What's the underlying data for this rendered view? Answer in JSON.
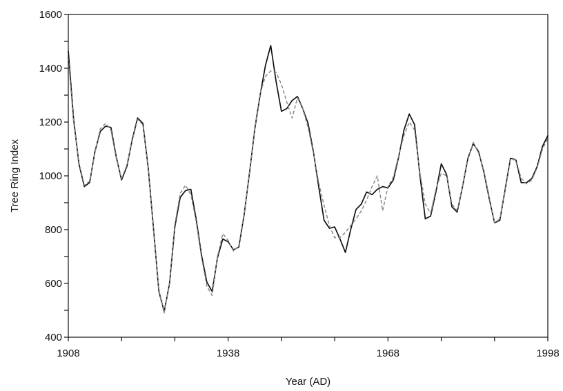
{
  "chart_data": {
    "type": "line",
    "title": "",
    "xlabel": "Year (AD)",
    "ylabel": "Tree Ring Index",
    "xlim": [
      1908,
      1998
    ],
    "ylim": [
      400,
      1600
    ],
    "x_ticks": [
      1908,
      1918,
      1928,
      1938,
      1948,
      1958,
      1968,
      1978,
      1988,
      1998
    ],
    "x_tick_labels": [
      "1908",
      "",
      "",
      "1938",
      "",
      "",
      "1968",
      "",
      "",
      "1998"
    ],
    "y_ticks": [
      400,
      500,
      600,
      700,
      800,
      900,
      1000,
      1100,
      1200,
      1300,
      1400,
      1500,
      1600
    ],
    "y_tick_labels": [
      "400",
      "",
      "600",
      "",
      "800",
      "",
      "1000",
      "",
      "1200",
      "",
      "1400",
      "",
      "1600"
    ],
    "grid": false,
    "legend": "none",
    "x": [
      1908,
      1909,
      1910,
      1911,
      1912,
      1913,
      1914,
      1915,
      1916,
      1917,
      1918,
      1919,
      1920,
      1921,
      1922,
      1923,
      1924,
      1925,
      1926,
      1927,
      1928,
      1929,
      1930,
      1931,
      1932,
      1933,
      1934,
      1935,
      1936,
      1937,
      1938,
      1939,
      1940,
      1941,
      1942,
      1943,
      1944,
      1945,
      1946,
      1947,
      1948,
      1949,
      1950,
      1951,
      1952,
      1953,
      1954,
      1955,
      1956,
      1957,
      1958,
      1959,
      1960,
      1961,
      1962,
      1963,
      1964,
      1965,
      1966,
      1967,
      1968,
      1969,
      1970,
      1971,
      1972,
      1973,
      1974,
      1975,
      1976,
      1977,
      1978,
      1979,
      1980,
      1981,
      1982,
      1983,
      1984,
      1985,
      1986,
      1987,
      1988,
      1989,
      1990,
      1991,
      1992,
      1993,
      1994,
      1995,
      1996,
      1997,
      1998
    ],
    "series": [
      {
        "style": "solid",
        "color": "#111111",
        "values": [
          1465,
          1210,
          1045,
          960,
          975,
          1090,
          1165,
          1185,
          1180,
          1070,
          985,
          1035,
          1135,
          1215,
          1195,
          1030,
          800,
          570,
          495,
          600,
          810,
          920,
          945,
          950,
          840,
          705,
          605,
          570,
          695,
          765,
          755,
          725,
          735,
          855,
          1010,
          1175,
          1300,
          1410,
          1485,
          1350,
          1240,
          1250,
          1280,
          1295,
          1250,
          1195,
          1090,
          960,
          835,
          805,
          810,
          765,
          715,
          800,
          875,
          895,
          940,
          930,
          950,
          960,
          955,
          985,
          1070,
          1170,
          1230,
          1190,
          1000,
          840,
          850,
          940,
          1045,
          1005,
          885,
          865,
          960,
          1065,
          1120,
          1090,
          1015,
          915,
          825,
          835,
          950,
          1065,
          1060,
          975,
          975,
          990,
          1035,
          1110,
          1150
        ]
      },
      {
        "style": "dashed",
        "color": "#888888",
        "values": [
          1440,
          1200,
          1050,
          965,
          980,
          1085,
          1175,
          1195,
          1170,
          1065,
          990,
          1040,
          1130,
          1210,
          1190,
          1025,
          795,
          575,
          490,
          605,
          820,
          935,
          965,
          930,
          830,
          695,
          590,
          555,
          700,
          785,
          760,
          720,
          740,
          860,
          1005,
          1180,
          1305,
          1370,
          1390,
          1385,
          1340,
          1275,
          1215,
          1290,
          1250,
          1180,
          1085,
          975,
          890,
          815,
          770,
          770,
          790,
          815,
          840,
          870,
          910,
          960,
          1000,
          870,
          960,
          995,
          1075,
          1150,
          1200,
          1170,
          1010,
          895,
          860,
          950,
          1010,
          1000,
          895,
          870,
          960,
          1060,
          1125,
          1085,
          1020,
          920,
          825,
          840,
          945,
          1060,
          1060,
          990,
          970,
          985,
          1030,
          1100,
          1140
        ]
      }
    ]
  }
}
